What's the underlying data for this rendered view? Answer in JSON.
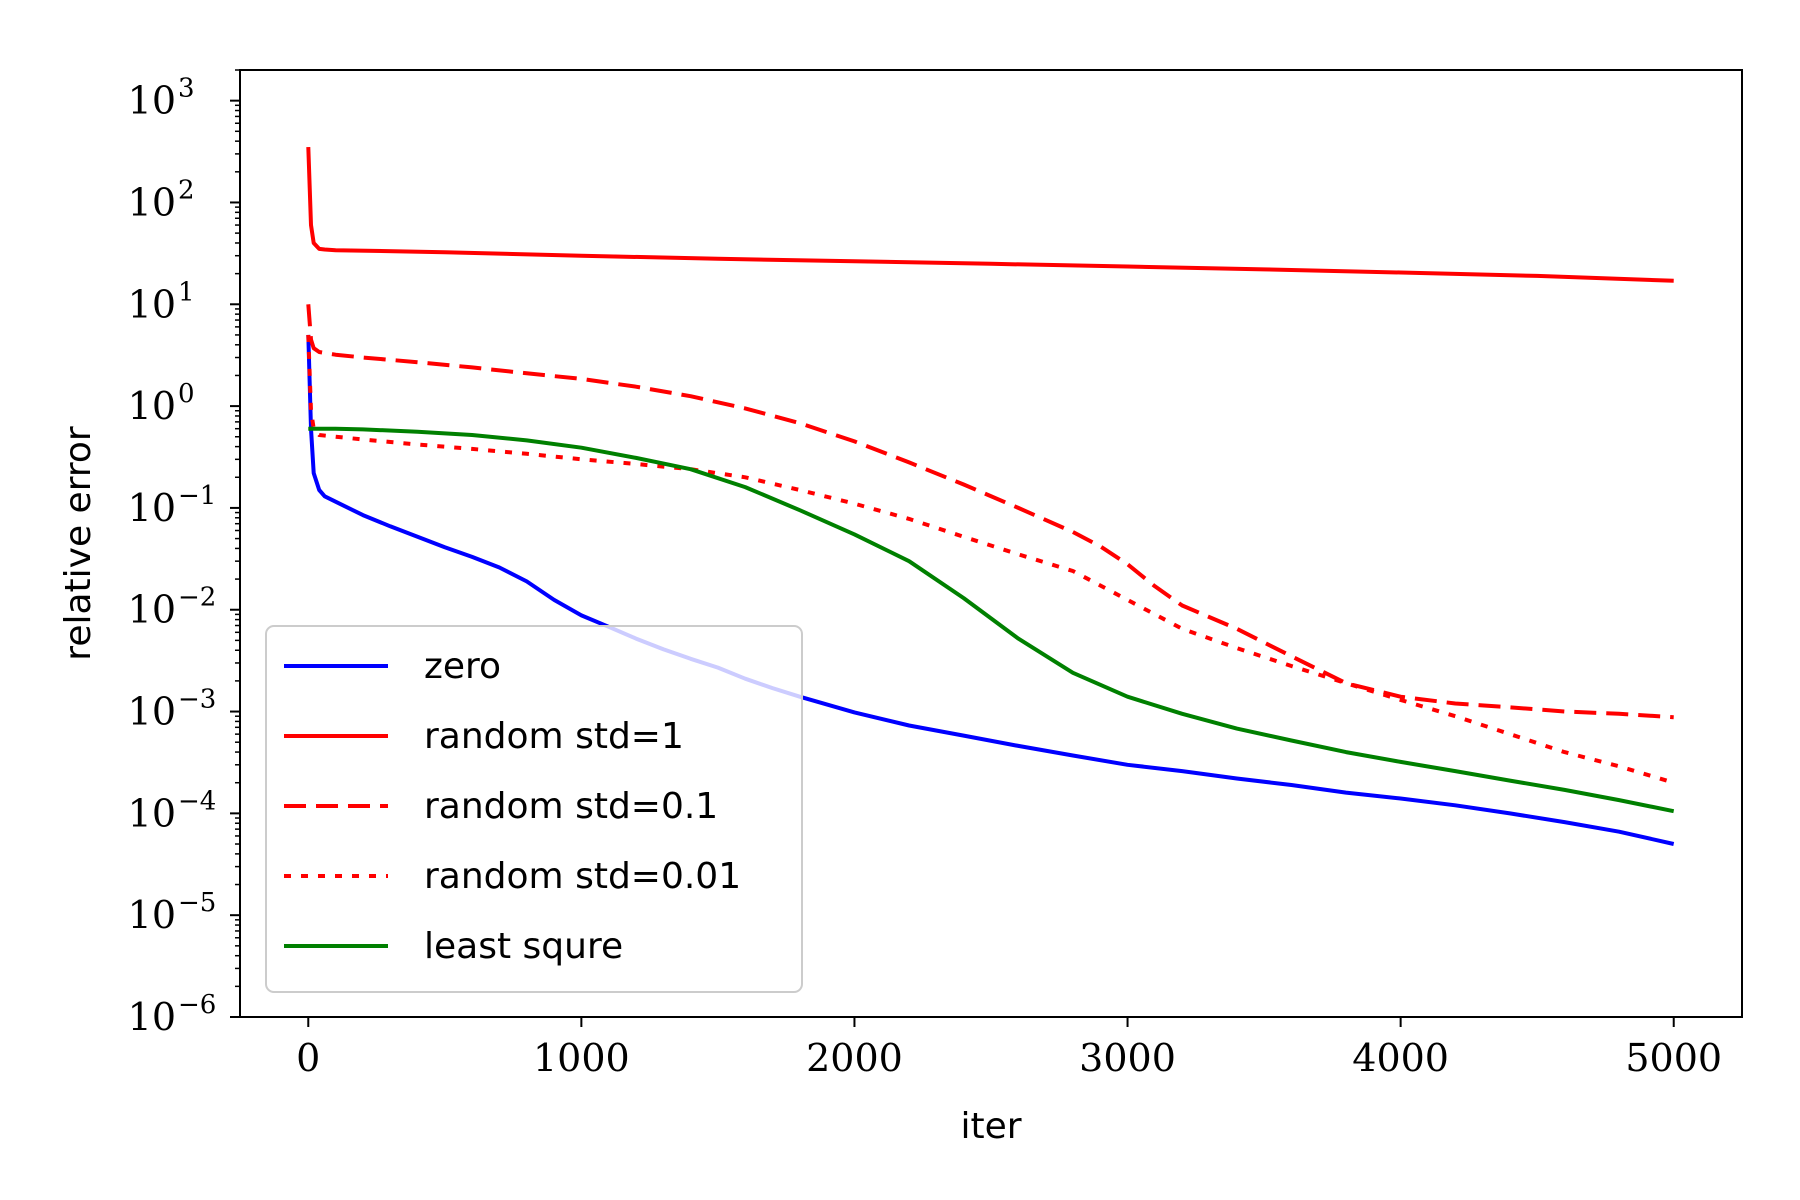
{
  "chart_data": {
    "type": "line",
    "xlabel": "iter",
    "ylabel": "relative error",
    "xlim": [
      -250,
      5250
    ],
    "ylim": [
      1e-06,
      2000
    ],
    "y_scale": "log",
    "grid": false,
    "legend_position": "lower-left",
    "x_ticks": [
      0,
      1000,
      2000,
      3000,
      4000,
      5000
    ],
    "x_tick_labels": [
      "0",
      "1000",
      "2000",
      "3000",
      "4000",
      "5000"
    ],
    "y_ticks": [
      {
        "value": 1e-06,
        "base": "10",
        "exp": "−6"
      },
      {
        "value": 1e-05,
        "base": "10",
        "exp": "−5"
      },
      {
        "value": 0.0001,
        "base": "10",
        "exp": "−4"
      },
      {
        "value": 0.001,
        "base": "10",
        "exp": "−3"
      },
      {
        "value": 0.01,
        "base": "10",
        "exp": "−2"
      },
      {
        "value": 0.1,
        "base": "10",
        "exp": "−1"
      },
      {
        "value": 1,
        "base": "10",
        "exp": "0"
      },
      {
        "value": 10,
        "base": "10",
        "exp": "1"
      },
      {
        "value": 100,
        "base": "10",
        "exp": "2"
      },
      {
        "value": 1000,
        "base": "10",
        "exp": "3"
      }
    ],
    "series": [
      {
        "name": "zero",
        "color": "#0000ff",
        "dash": "solid",
        "x": [
          0,
          10,
          20,
          40,
          60,
          100,
          200,
          300,
          400,
          500,
          600,
          700,
          800,
          900,
          1000,
          1100,
          1200,
          1300,
          1400,
          1500,
          1600,
          1700,
          1800,
          2000,
          2200,
          2400,
          2600,
          2800,
          3000,
          3200,
          3400,
          3600,
          3800,
          4000,
          4200,
          4400,
          4600,
          4800,
          5000
        ],
        "y": [
          5.0,
          0.6,
          0.22,
          0.15,
          0.13,
          0.115,
          0.085,
          0.066,
          0.052,
          0.041,
          0.033,
          0.026,
          0.019,
          0.0125,
          0.0088,
          0.0068,
          0.0052,
          0.0041,
          0.0033,
          0.0027,
          0.0021,
          0.0017,
          0.0014,
          0.00098,
          0.00073,
          0.00058,
          0.00046,
          0.00037,
          0.0003,
          0.00026,
          0.00022,
          0.00019,
          0.00016,
          0.00014,
          0.00012,
          0.0001,
          8.2e-05,
          6.6e-05,
          5e-05
        ]
      },
      {
        "name": "random std=1",
        "color": "#ff0000",
        "dash": "solid",
        "x": [
          0,
          10,
          20,
          40,
          60,
          100,
          500,
          1000,
          1500,
          2000,
          2500,
          3000,
          3500,
          4000,
          4500,
          5000
        ],
        "y": [
          350,
          60,
          40,
          35,
          34.5,
          34,
          32.5,
          30,
          28,
          26.5,
          25,
          23.5,
          22,
          20.5,
          19,
          17
        ]
      },
      {
        "name": "random std=0.1",
        "color": "#ff0000",
        "dash": "dashed",
        "x": [
          0,
          10,
          20,
          40,
          100,
          200,
          400,
          600,
          800,
          1000,
          1200,
          1400,
          1600,
          1800,
          2000,
          2200,
          2400,
          2600,
          2800,
          2900,
          3000,
          3100,
          3200,
          3400,
          3600,
          3800,
          4000,
          4200,
          4400,
          4600,
          4800,
          5000
        ],
        "y": [
          10,
          4.5,
          3.7,
          3.4,
          3.2,
          3.0,
          2.7,
          2.4,
          2.1,
          1.85,
          1.55,
          1.25,
          0.95,
          0.68,
          0.45,
          0.28,
          0.17,
          0.1,
          0.058,
          0.042,
          0.028,
          0.017,
          0.011,
          0.0065,
          0.0035,
          0.0019,
          0.0014,
          0.0012,
          0.0011,
          0.001,
          0.00095,
          0.00088
        ]
      },
      {
        "name": "random std=0.01",
        "color": "#ff0000",
        "dash": "dotted",
        "x": [
          0,
          10,
          20,
          40,
          100,
          200,
          400,
          600,
          800,
          1000,
          1200,
          1400,
          1600,
          1800,
          2000,
          2200,
          2400,
          2600,
          2800,
          3000,
          3200,
          3400,
          3600,
          3800,
          4000,
          4200,
          4400,
          4600,
          4800,
          5000
        ],
        "y": [
          5.0,
          0.9,
          0.6,
          0.52,
          0.5,
          0.47,
          0.42,
          0.38,
          0.34,
          0.3,
          0.27,
          0.24,
          0.2,
          0.15,
          0.11,
          0.078,
          0.052,
          0.035,
          0.024,
          0.0125,
          0.0065,
          0.0042,
          0.0028,
          0.0019,
          0.0013,
          0.0009,
          0.0006,
          0.0004,
          0.00029,
          0.0002
        ]
      },
      {
        "name": "least squre",
        "color": "#008000",
        "dash": "solid",
        "x": [
          0,
          100,
          200,
          400,
          600,
          800,
          1000,
          1200,
          1400,
          1600,
          1800,
          2000,
          2200,
          2400,
          2600,
          2800,
          3000,
          3200,
          3400,
          3600,
          3800,
          4000,
          4200,
          4400,
          4600,
          4800,
          5000
        ],
        "y": [
          0.6,
          0.6,
          0.59,
          0.56,
          0.52,
          0.46,
          0.39,
          0.31,
          0.24,
          0.16,
          0.095,
          0.055,
          0.03,
          0.013,
          0.0052,
          0.0024,
          0.0014,
          0.00095,
          0.00068,
          0.00052,
          0.0004,
          0.00032,
          0.00026,
          0.00021,
          0.00017,
          0.000135,
          0.000105
        ]
      }
    ]
  }
}
